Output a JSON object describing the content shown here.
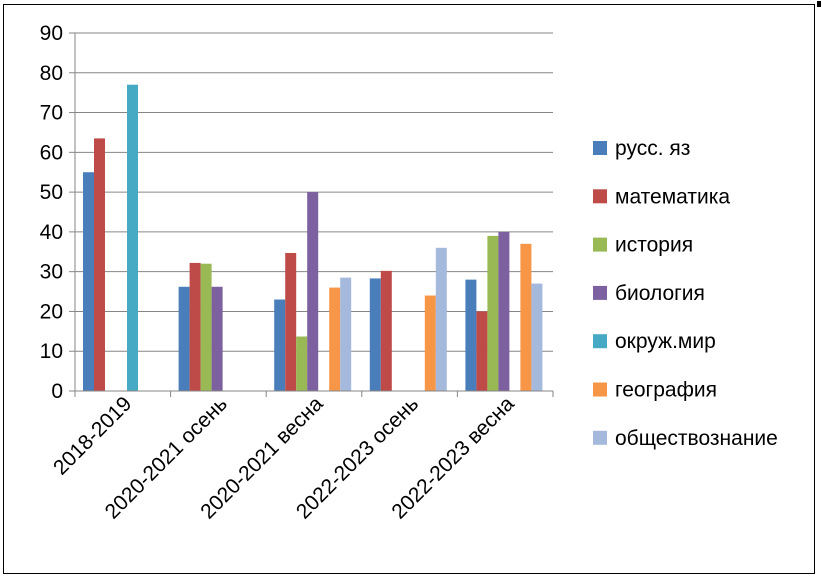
{
  "chart_data": {
    "type": "bar",
    "categories": [
      "2018-2019",
      "2020-2021 осень",
      "2020-2021 весна",
      "2022-2023 осень",
      "2022-2023 весна"
    ],
    "series": [
      {
        "name": "русс. яз",
        "color": "#4a7ebb",
        "values": [
          55,
          26.2,
          23,
          28.3,
          28
        ]
      },
      {
        "name": "математика",
        "color": "#be4b48",
        "values": [
          63.5,
          32.2,
          34.7,
          30.2,
          20
        ]
      },
      {
        "name": "история",
        "color": "#98b954",
        "values": [
          null,
          32,
          13.7,
          null,
          39
        ]
      },
      {
        "name": "биология",
        "color": "#7d60a0",
        "values": [
          null,
          26.2,
          50,
          null,
          40
        ]
      },
      {
        "name": "окруж.мир",
        "color": "#46aac5",
        "values": [
          77,
          null,
          null,
          null,
          null
        ]
      },
      {
        "name": "география",
        "color": "#f79646",
        "values": [
          null,
          null,
          26,
          24,
          37
        ]
      },
      {
        "name": "обществознание",
        "color": "#a5b9dd",
        "values": [
          null,
          null,
          28.5,
          36,
          27
        ]
      }
    ],
    "y_ticks": [
      "0",
      "10",
      "20",
      "30",
      "40",
      "50",
      "60",
      "70",
      "80",
      "90"
    ],
    "ylim": [
      0,
      90
    ],
    "grid": true,
    "legend_position": "right"
  }
}
